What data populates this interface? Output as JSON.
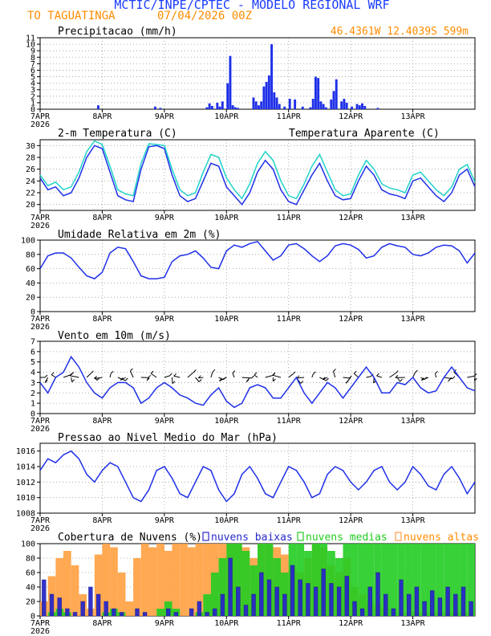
{
  "header": {
    "title": "MCTIC/INPE/CPTEC - MODELO REGIONAL WRF",
    "location": "TO TAGUATINGA",
    "run": "07/04/2026 00Z",
    "coords": "46.4361W 12.4039S 599m"
  },
  "colors": {
    "title": "#1a3cff",
    "orange": "#ff8c00",
    "blue": "#1e2fe8",
    "cyan": "#1fd3c8",
    "cloud_low": "#2828c8",
    "cloud_mid": "#22cc22",
    "cloud_high": "#ffa040",
    "frame": "#000000"
  },
  "x_axis": {
    "labels": [
      "7APR",
      "8APR",
      "9APR",
      "10APR",
      "11APR",
      "12APR",
      "13APR"
    ],
    "start_year": "2026",
    "hours_total": 168
  },
  "chart_data": [
    {
      "id": "precip",
      "type": "bar",
      "title": "Precipitacao (mm/h)",
      "ylim": [
        0,
        11
      ],
      "yticks": [
        0,
        1,
        2,
        3,
        4,
        5,
        6,
        7,
        8,
        9,
        10,
        11
      ],
      "x_unit": "hours since 07APR 00Z",
      "x": [
        22,
        44,
        46,
        64,
        65,
        66,
        68,
        69,
        70,
        72,
        73,
        74,
        75,
        76,
        82,
        83,
        84,
        85,
        86,
        87,
        88,
        89,
        90,
        91,
        92,
        94,
        96,
        98,
        101,
        104,
        105,
        106,
        107,
        108,
        109,
        110,
        112,
        113,
        114,
        116,
        117,
        118,
        120,
        122,
        123,
        124,
        125,
        130
      ],
      "values": [
        0.6,
        0.4,
        0.2,
        0.3,
        0.9,
        0.5,
        1.0,
        0.4,
        1.2,
        4.0,
        8.2,
        0.6,
        0.3,
        0.2,
        1.8,
        1.2,
        0.6,
        1.2,
        3.5,
        4.2,
        5.2,
        10.0,
        2.6,
        1.8,
        0.8,
        0.4,
        1.6,
        1.5,
        0.4,
        0.3,
        1.6,
        5.0,
        4.8,
        1.2,
        0.8,
        0.3,
        1.5,
        2.8,
        4.6,
        1.2,
        1.6,
        1.0,
        0.4,
        0.8,
        0.6,
        0.9,
        0.5,
        0.2
      ]
    },
    {
      "id": "temp",
      "type": "line",
      "title": "2-m Temperatura (C)",
      "ylim": [
        19,
        31
      ],
      "yticks": [
        20,
        22,
        24,
        26,
        28,
        30
      ],
      "series": [
        {
          "name": "2-m Temperatura (C)",
          "color": "#1e2fe8",
          "x": [
            0,
            3,
            6,
            9,
            12,
            15,
            18,
            21,
            24,
            27,
            30,
            33,
            36,
            39,
            42,
            45,
            48,
            51,
            54,
            57,
            60,
            63,
            66,
            69,
            72,
            75,
            78,
            81,
            84,
            87,
            90,
            93,
            96,
            99,
            102,
            105,
            108,
            111,
            114,
            117,
            120,
            123,
            126,
            129,
            132,
            135,
            138,
            141,
            144,
            147,
            150,
            153,
            156,
            159,
            162,
            165,
            168
          ],
          "y": [
            24.5,
            22.5,
            23.0,
            21.5,
            22.0,
            24.5,
            28.0,
            30.0,
            29.5,
            25.5,
            21.5,
            20.8,
            20.5,
            26.0,
            29.8,
            30.0,
            29.5,
            25.0,
            21.5,
            20.5,
            21.0,
            24.0,
            27.0,
            26.5,
            23.0,
            21.5,
            20.0,
            22.0,
            25.5,
            27.5,
            26.0,
            22.5,
            20.5,
            20.0,
            22.5,
            25.0,
            27.0,
            24.0,
            21.5,
            20.8,
            21.0,
            24.0,
            26.5,
            25.0,
            22.5,
            21.8,
            21.5,
            21.0,
            24.0,
            24.5,
            23.0,
            21.5,
            20.5,
            22.0,
            25.0,
            26.0,
            23.0
          ]
        },
        {
          "name": "Temperatura Aparente (C)",
          "color": "#1fd3c8",
          "x": [
            0,
            3,
            6,
            9,
            12,
            15,
            18,
            21,
            24,
            27,
            30,
            33,
            36,
            39,
            42,
            45,
            48,
            51,
            54,
            57,
            60,
            63,
            66,
            69,
            72,
            75,
            78,
            81,
            84,
            87,
            90,
            93,
            96,
            99,
            102,
            105,
            108,
            111,
            114,
            117,
            120,
            123,
            126,
            129,
            132,
            135,
            138,
            141,
            144,
            147,
            150,
            153,
            156,
            159,
            162,
            165,
            168
          ],
          "y": [
            25.0,
            23.2,
            23.8,
            22.5,
            23.0,
            25.5,
            29.0,
            30.8,
            30.2,
            26.5,
            22.5,
            21.8,
            21.5,
            27.0,
            30.3,
            30.2,
            30.0,
            26.0,
            22.5,
            21.5,
            22.0,
            25.5,
            28.5,
            28.0,
            24.5,
            22.5,
            21.0,
            23.5,
            27.0,
            29.0,
            27.5,
            24.0,
            21.5,
            21.0,
            23.5,
            26.5,
            28.5,
            25.5,
            22.5,
            21.5,
            21.8,
            25.0,
            27.5,
            26.0,
            23.5,
            22.8,
            22.5,
            22.0,
            25.0,
            25.5,
            24.0,
            22.5,
            21.5,
            23.0,
            26.0,
            26.8,
            23.8
          ]
        }
      ]
    },
    {
      "id": "rh",
      "type": "line",
      "title": "Umidade Relativa em 2m (%)",
      "ylim": [
        0,
        100
      ],
      "yticks": [
        0,
        20,
        40,
        60,
        80,
        100
      ],
      "series": [
        {
          "name": "Umidade Relativa em 2m (%)",
          "color": "#1e2fe8",
          "x": [
            0,
            3,
            6,
            9,
            12,
            15,
            18,
            21,
            24,
            27,
            30,
            33,
            36,
            39,
            42,
            45,
            48,
            51,
            54,
            57,
            60,
            63,
            66,
            69,
            72,
            75,
            78,
            81,
            84,
            87,
            90,
            93,
            96,
            99,
            102,
            105,
            108,
            111,
            114,
            117,
            120,
            123,
            126,
            129,
            132,
            135,
            138,
            141,
            144,
            147,
            150,
            153,
            156,
            159,
            162,
            165,
            168
          ],
          "y": [
            60,
            78,
            82,
            82,
            75,
            62,
            50,
            46,
            55,
            82,
            90,
            88,
            70,
            50,
            46,
            46,
            48,
            70,
            78,
            80,
            85,
            75,
            62,
            60,
            85,
            93,
            90,
            95,
            98,
            85,
            72,
            78,
            93,
            95,
            88,
            78,
            70,
            78,
            92,
            95,
            93,
            87,
            75,
            78,
            90,
            95,
            92,
            90,
            80,
            78,
            82,
            90,
            93,
            92,
            85,
            68,
            82
          ]
        }
      ]
    },
    {
      "id": "wind",
      "type": "line",
      "title": "Vento em 10m (m/s)",
      "ylim": [
        0,
        7
      ],
      "yticks": [
        0,
        1,
        2,
        3,
        4,
        5,
        6,
        7
      ],
      "series": [
        {
          "name": "Vento em 10m (m/s)",
          "color": "#1e2fe8",
          "x": [
            0,
            3,
            6,
            9,
            12,
            15,
            18,
            21,
            24,
            27,
            30,
            33,
            36,
            39,
            42,
            45,
            48,
            51,
            54,
            57,
            60,
            63,
            66,
            69,
            72,
            75,
            78,
            81,
            84,
            87,
            90,
            93,
            96,
            99,
            102,
            105,
            108,
            111,
            114,
            117,
            120,
            123,
            126,
            129,
            132,
            135,
            138,
            141,
            144,
            147,
            150,
            153,
            156,
            159,
            162,
            165,
            168
          ],
          "y": [
            3.0,
            2.0,
            3.5,
            4.0,
            5.5,
            4.5,
            3.0,
            2.0,
            1.5,
            2.5,
            3.0,
            3.0,
            2.5,
            1.0,
            1.5,
            2.5,
            3.0,
            2.5,
            1.8,
            1.5,
            1.0,
            0.8,
            1.8,
            2.5,
            1.2,
            0.6,
            1.0,
            2.5,
            2.8,
            2.5,
            1.5,
            1.5,
            2.5,
            3.5,
            2.0,
            1.0,
            2.0,
            3.0,
            2.5,
            1.5,
            2.5,
            3.5,
            4.5,
            3.5,
            2.0,
            2.0,
            3.0,
            2.8,
            3.5,
            2.5,
            2.0,
            2.2,
            3.5,
            4.5,
            3.5,
            2.5,
            2.2
          ]
        }
      ]
    },
    {
      "id": "slp",
      "type": "line",
      "title": "Pressao ao Nivel Medio do Mar (hPa)",
      "ylim": [
        1008,
        1017
      ],
      "yticks": [
        1008,
        1010,
        1012,
        1014,
        1016
      ],
      "series": [
        {
          "name": "Pressao ao Nivel Medio do Mar (hPa)",
          "color": "#1e2fe8",
          "x": [
            0,
            3,
            6,
            9,
            12,
            15,
            18,
            21,
            24,
            27,
            30,
            33,
            36,
            39,
            42,
            45,
            48,
            51,
            54,
            57,
            60,
            63,
            66,
            69,
            72,
            75,
            78,
            81,
            84,
            87,
            90,
            93,
            96,
            99,
            102,
            105,
            108,
            111,
            114,
            117,
            120,
            123,
            126,
            129,
            132,
            135,
            138,
            141,
            144,
            147,
            150,
            153,
            156,
            159,
            162,
            165,
            168
          ],
          "y": [
            1013.5,
            1015.0,
            1014.5,
            1015.5,
            1016.0,
            1015.0,
            1013.0,
            1012.0,
            1013.5,
            1014.5,
            1014.0,
            1012.0,
            1010.0,
            1009.5,
            1011.0,
            1013.5,
            1014.0,
            1012.5,
            1010.5,
            1010.0,
            1012.0,
            1014.0,
            1013.5,
            1011.0,
            1009.5,
            1010.5,
            1013.0,
            1014.0,
            1012.5,
            1010.5,
            1010.0,
            1012.0,
            1014.0,
            1013.5,
            1012.0,
            1010.0,
            1010.5,
            1013.0,
            1014.0,
            1013.5,
            1012.0,
            1011.0,
            1012.0,
            1013.5,
            1014.0,
            1012.0,
            1011.0,
            1012.0,
            1014.0,
            1013.0,
            1011.5,
            1011.0,
            1013.0,
            1014.0,
            1012.5,
            1010.5,
            1012.0
          ]
        }
      ]
    },
    {
      "id": "clouds",
      "type": "bar",
      "title": "Cobertura de Nuvens (%)",
      "ylim": [
        0,
        100
      ],
      "yticks": [
        0,
        20,
        40,
        60,
        80,
        100
      ],
      "legend": [
        "nuvens baixas",
        "nuvens medias",
        "nuvens altas"
      ],
      "x": [
        0,
        3,
        6,
        9,
        12,
        15,
        18,
        21,
        24,
        27,
        30,
        33,
        36,
        39,
        42,
        45,
        48,
        51,
        54,
        57,
        60,
        63,
        66,
        69,
        72,
        75,
        78,
        81,
        84,
        87,
        90,
        93,
        96,
        99,
        102,
        105,
        108,
        111,
        114,
        117,
        120,
        123,
        126,
        129,
        132,
        135,
        138,
        141,
        144,
        147,
        150,
        153,
        156,
        159,
        162,
        165
      ],
      "series": [
        {
          "name": "nuvens altas",
          "color": "#ffa040",
          "values": [
            20,
            55,
            80,
            90,
            70,
            30,
            10,
            85,
            100,
            95,
            60,
            20,
            80,
            100,
            95,
            100,
            90,
            100,
            100,
            95,
            100,
            100,
            100,
            100,
            100,
            100,
            95,
            80,
            100,
            100,
            95,
            85,
            70,
            60,
            80,
            100,
            95,
            70,
            60,
            80,
            40,
            30,
            20,
            15,
            10,
            10,
            5,
            5,
            5,
            5,
            5,
            5,
            5,
            5,
            5,
            5
          ]
        },
        {
          "name": "nuvens medias",
          "color": "#22cc22",
          "values": [
            0,
            5,
            10,
            5,
            0,
            0,
            0,
            0,
            5,
            10,
            5,
            0,
            0,
            0,
            0,
            10,
            20,
            10,
            0,
            0,
            5,
            30,
            60,
            80,
            100,
            100,
            90,
            70,
            100,
            100,
            80,
            60,
            100,
            100,
            90,
            100,
            100,
            90,
            80,
            100,
            100,
            100,
            100,
            100,
            100,
            100,
            100,
            100,
            100,
            100,
            100,
            100,
            100,
            100,
            100,
            100
          ]
        },
        {
          "name": "nuvens baixas",
          "color": "#2828c8",
          "values": [
            50,
            30,
            25,
            10,
            5,
            20,
            40,
            30,
            20,
            10,
            5,
            0,
            10,
            5,
            0,
            0,
            10,
            5,
            0,
            10,
            20,
            5,
            10,
            30,
            80,
            40,
            15,
            30,
            60,
            50,
            40,
            30,
            70,
            50,
            45,
            40,
            65,
            45,
            40,
            55,
            20,
            10,
            40,
            60,
            30,
            10,
            50,
            30,
            40,
            20,
            35,
            25,
            40,
            30,
            40,
            20
          ]
        }
      ]
    }
  ]
}
